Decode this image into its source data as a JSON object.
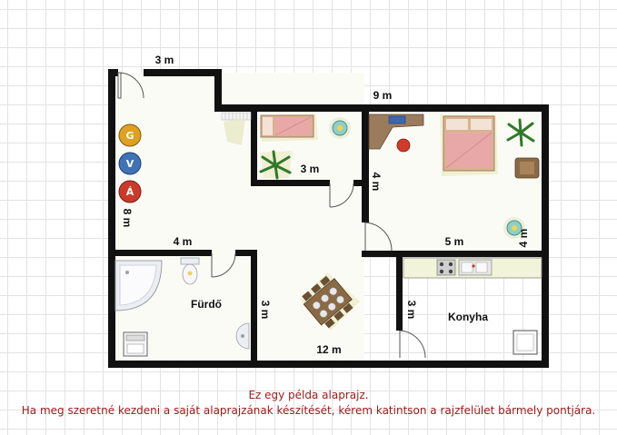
{
  "dimensions": {
    "top_left_width": "3 m",
    "top_right_width": "9 m",
    "left_height": "8 m",
    "small_room_width": "3 m",
    "small_room_height": "4 m",
    "bedroom_width": "5 m",
    "bedroom_height": "4 m",
    "bathroom_width": "4 m",
    "middle_height": "3 m",
    "kitchen_height": "3 m",
    "bottom_width": "12 m"
  },
  "rooms": {
    "bathroom": "Fürdő",
    "kitchen": "Konyha"
  },
  "badges": [
    {
      "letter": "G",
      "color": "#e0a020"
    },
    {
      "letter": "V",
      "color": "#3f73b6"
    },
    {
      "letter": "Á",
      "color": "#cc3a2a"
    }
  ],
  "message": {
    "line1": "Ez egy példa alaprajz.",
    "line2": "Ha meg szeretné kezdeni  a saját alaprajzának készítését, kérem katintson a rajzfelület bármely pontjára."
  }
}
